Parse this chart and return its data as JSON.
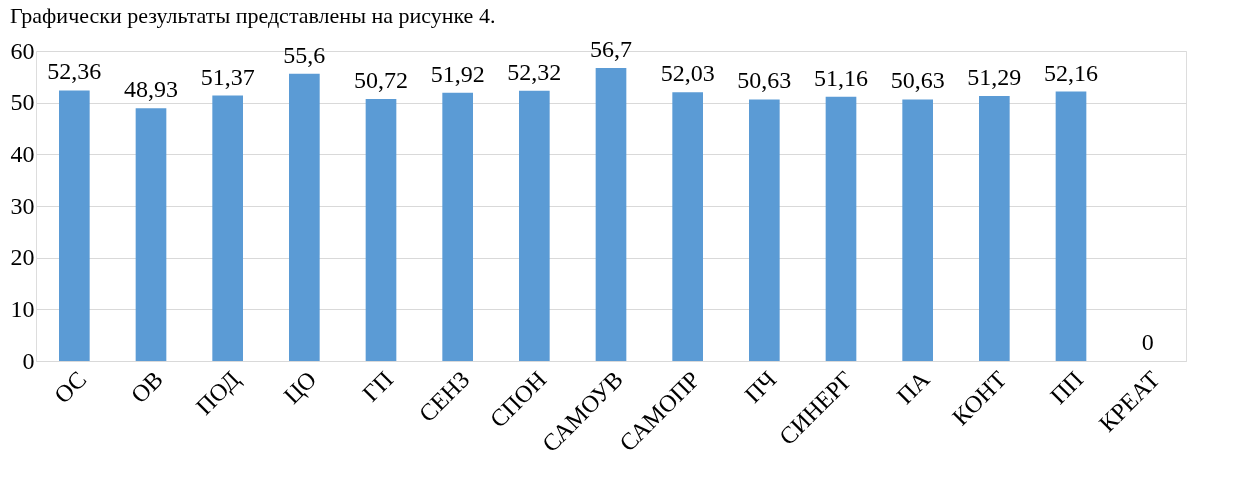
{
  "chart_data": {
    "type": "bar",
    "categories": [
      "ОС",
      "ОВ",
      "ПОД",
      "ЦО",
      "ГП",
      "СЕНЗ",
      "СПОН",
      "САМОУВ",
      "САМОПР",
      "ПЧ",
      "СИНЕРГ",
      "ПА",
      "КОНТ",
      "ПП",
      "КРЕАТ"
    ],
    "values": [
      52.36,
      48.93,
      51.37,
      55.6,
      50.72,
      51.92,
      52.32,
      56.7,
      52.03,
      50.63,
      51.16,
      50.63,
      51.29,
      52.16,
      0
    ],
    "value_labels": [
      "52,36",
      "48,93",
      "51,37",
      "55,6",
      "50,72",
      "51,92",
      "52,32",
      "56,7",
      "52,03",
      "50,63",
      "51,16",
      "50,63",
      "51,29",
      "52,16",
      "0"
    ],
    "color": "#5b9bd5",
    "ylim": [
      0,
      60
    ],
    "yticks": [
      0,
      10,
      20,
      30,
      40,
      50,
      60
    ],
    "grid": "y",
    "annotations": [
      "Графически результаты представлены на рисунке 4."
    ]
  }
}
